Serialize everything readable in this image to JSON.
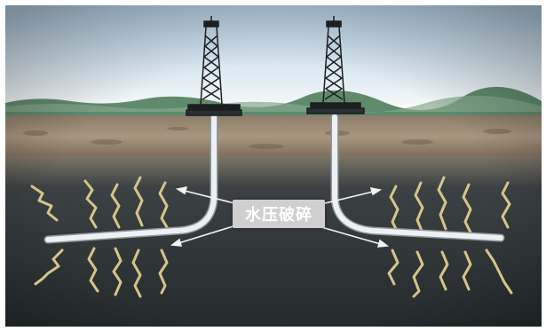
{
  "diagram": {
    "label": "水压破碎",
    "colors": {
      "sky_top": "#b9d6ec",
      "sky_horizon": "#eef4f8",
      "vegetation": "#5f8a6c",
      "topsoil": "#a08f78",
      "rock_layer": "#2f3537",
      "pipe": "#e8ecef",
      "fracture": "#d6c48a",
      "arrow": "#f2f2f2",
      "label_bg": "#cfcfcf",
      "label_text": "#ffffff"
    },
    "icons": [
      "drilling-rig-icon",
      "wellbore-pipe-icon",
      "fracture-crack-icon",
      "arrow-icon"
    ]
  }
}
